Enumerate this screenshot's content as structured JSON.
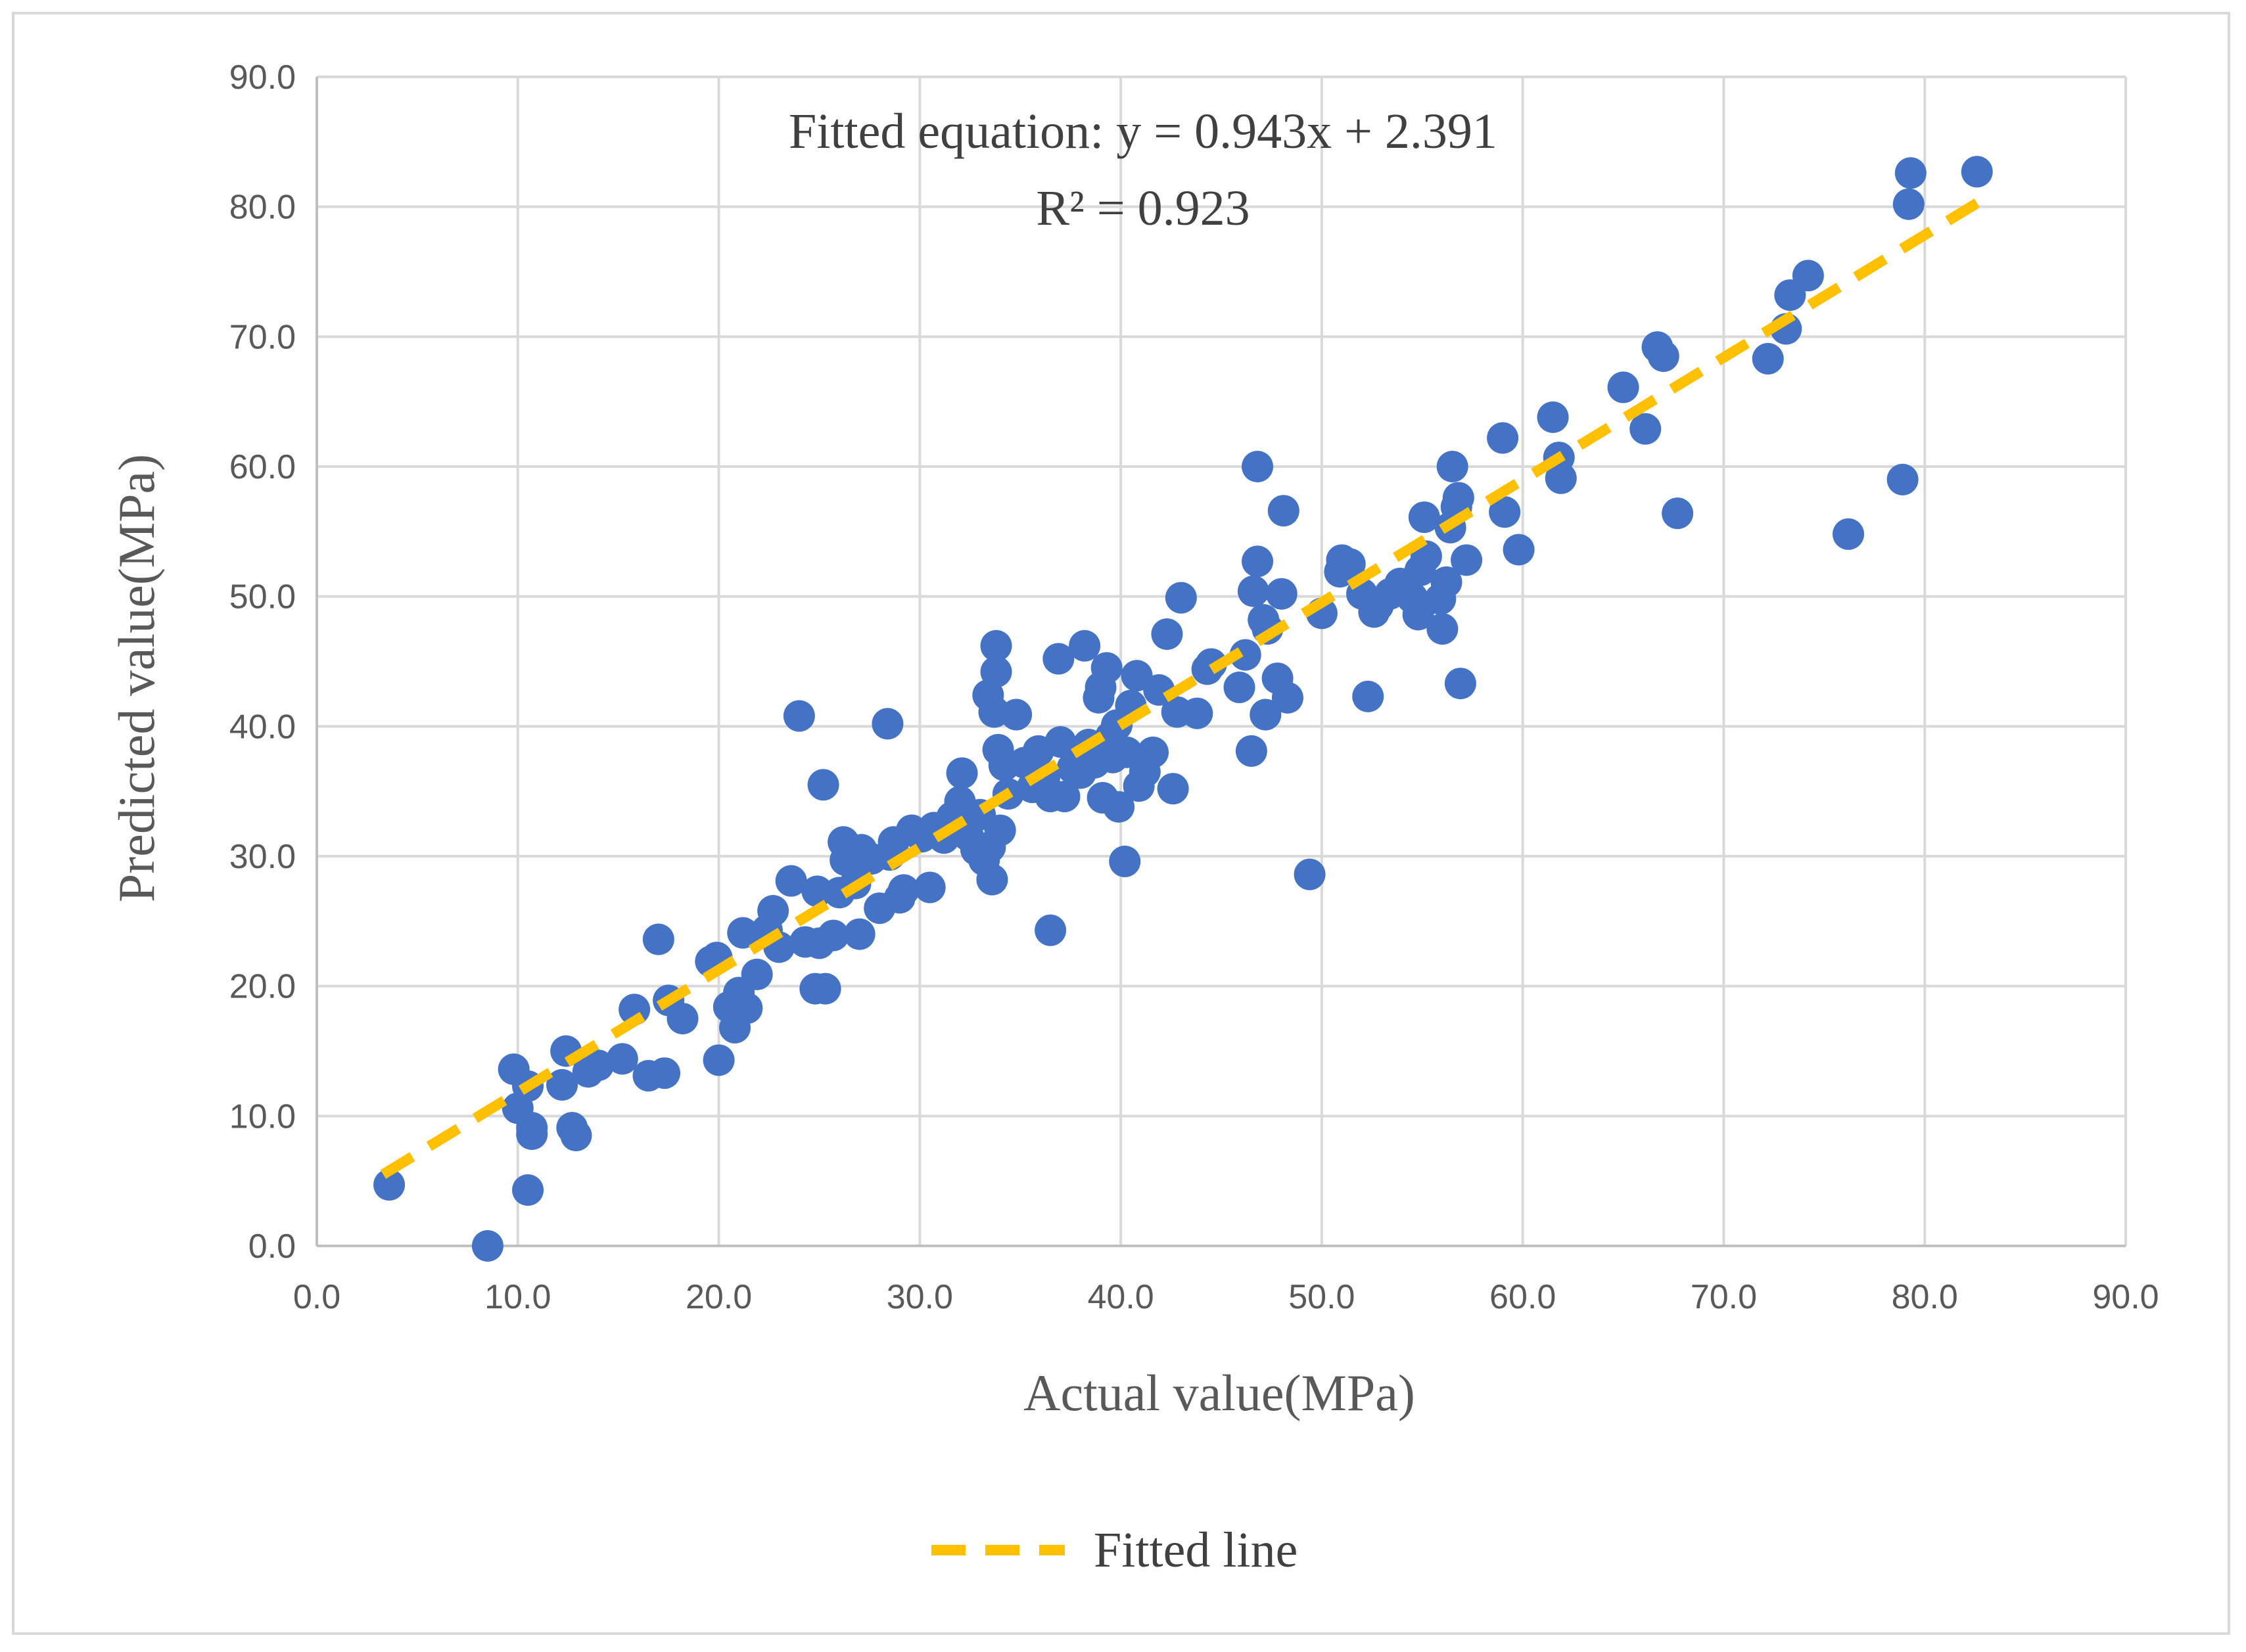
{
  "chart_data": {
    "type": "scatter",
    "title": "",
    "xlabel": "Actual value(MPa)",
    "ylabel": "Predicted value(MPa)",
    "xlim": [
      0,
      90
    ],
    "ylim": [
      0,
      90
    ],
    "x_ticks": [
      "0.0",
      "10.0",
      "20.0",
      "30.0",
      "40.0",
      "50.0",
      "60.0",
      "70.0",
      "80.0",
      "90.0"
    ],
    "y_ticks": [
      "0.0",
      "10.0",
      "20.0",
      "30.0",
      "40.0",
      "50.0",
      "60.0",
      "70.0",
      "80.0",
      "90.0"
    ],
    "grid": true,
    "legend_position": "bottom",
    "colors": {
      "points": "#4472c4",
      "fit_line": "#ffc000",
      "grid": "#d9d9d9",
      "axis": "#bfbfbf"
    },
    "annotation": {
      "equation": "Fitted equation: y = 0.943x + 2.391",
      "r2": "R² = 0.923"
    },
    "fit_line": {
      "name": "Fitted line",
      "slope": 0.943,
      "intercept": 2.391,
      "x_range": [
        3.3,
        83
      ]
    },
    "points": [
      [
        3.6,
        4.7
      ],
      [
        8.5,
        0.0
      ],
      [
        9.8,
        13.6
      ],
      [
        10.0,
        10.6
      ],
      [
        10.5,
        12.3
      ],
      [
        10.5,
        4.3
      ],
      [
        10.7,
        9.1
      ],
      [
        10.7,
        8.6
      ],
      [
        12.2,
        12.4
      ],
      [
        12.4,
        15.0
      ],
      [
        12.7,
        9.1
      ],
      [
        12.9,
        8.5
      ],
      [
        13.5,
        13.4
      ],
      [
        14.0,
        13.9
      ],
      [
        15.2,
        14.4
      ],
      [
        15.8,
        18.2
      ],
      [
        16.5,
        13.1
      ],
      [
        17.0,
        23.6
      ],
      [
        17.3,
        13.3
      ],
      [
        17.5,
        18.9
      ],
      [
        18.2,
        17.5
      ],
      [
        19.6,
        21.9
      ],
      [
        19.9,
        22.2
      ],
      [
        20.0,
        14.3
      ],
      [
        20.5,
        18.4
      ],
      [
        20.8,
        16.8
      ],
      [
        21.0,
        19.5
      ],
      [
        21.2,
        24.1
      ],
      [
        21.4,
        18.3
      ],
      [
        21.9,
        20.9
      ],
      [
        22.4,
        24.3
      ],
      [
        22.7,
        25.8
      ],
      [
        23.0,
        23.0
      ],
      [
        23.6,
        28.1
      ],
      [
        24.0,
        40.8
      ],
      [
        24.3,
        23.4
      ],
      [
        24.8,
        19.8
      ],
      [
        24.9,
        27.3
      ],
      [
        25.0,
        23.3
      ],
      [
        25.2,
        35.5
      ],
      [
        25.3,
        19.8
      ],
      [
        25.7,
        23.9
      ],
      [
        26.0,
        27.2
      ],
      [
        26.2,
        31.1
      ],
      [
        26.3,
        29.7
      ],
      [
        26.8,
        27.9
      ],
      [
        27.0,
        24.0
      ],
      [
        27.1,
        30.5
      ],
      [
        27.6,
        29.8
      ],
      [
        28.0,
        26.0
      ],
      [
        28.4,
        40.2
      ],
      [
        28.5,
        30.1
      ],
      [
        28.7,
        31.1
      ],
      [
        29.0,
        26.8
      ],
      [
        29.2,
        27.4
      ],
      [
        29.6,
        32.0
      ],
      [
        30.1,
        31.5
      ],
      [
        30.5,
        27.6
      ],
      [
        30.7,
        32.2
      ],
      [
        31.2,
        31.4
      ],
      [
        31.6,
        33.0
      ],
      [
        32.0,
        34.2
      ],
      [
        32.1,
        36.4
      ],
      [
        32.4,
        31.6
      ],
      [
        32.8,
        30.5
      ],
      [
        33.0,
        33.2
      ],
      [
        33.2,
        29.7
      ],
      [
        33.4,
        42.4
      ],
      [
        33.5,
        30.7
      ],
      [
        33.6,
        28.2
      ],
      [
        33.7,
        41.1
      ],
      [
        33.8,
        44.2
      ],
      [
        33.8,
        46.2
      ],
      [
        33.9,
        38.2
      ],
      [
        34.0,
        32.0
      ],
      [
        34.2,
        37.0
      ],
      [
        34.4,
        34.8
      ],
      [
        34.8,
        40.9
      ],
      [
        35.2,
        37.2
      ],
      [
        35.6,
        35.3
      ],
      [
        35.9,
        38.1
      ],
      [
        36.2,
        36.0
      ],
      [
        36.5,
        34.6
      ],
      [
        36.5,
        24.3
      ],
      [
        36.9,
        45.2
      ],
      [
        37.0,
        38.8
      ],
      [
        37.2,
        34.6
      ],
      [
        37.6,
        36.8
      ],
      [
        38.0,
        36.4
      ],
      [
        38.2,
        46.2
      ],
      [
        38.4,
        38.6
      ],
      [
        38.7,
        37.2
      ],
      [
        38.9,
        42.2
      ],
      [
        39.0,
        43.0
      ],
      [
        39.1,
        34.5
      ],
      [
        39.3,
        44.5
      ],
      [
        39.5,
        39.2
      ],
      [
        39.6,
        37.6
      ],
      [
        39.8,
        40.1
      ],
      [
        39.9,
        33.8
      ],
      [
        40.2,
        29.6
      ],
      [
        40.3,
        38.0
      ],
      [
        40.5,
        41.6
      ],
      [
        40.8,
        43.9
      ],
      [
        40.9,
        35.4
      ],
      [
        41.2,
        36.5
      ],
      [
        41.6,
        38.0
      ],
      [
        41.9,
        42.8
      ],
      [
        42.3,
        47.1
      ],
      [
        42.6,
        35.2
      ],
      [
        42.8,
        41.1
      ],
      [
        43.0,
        49.9
      ],
      [
        43.8,
        41.0
      ],
      [
        44.3,
        44.4
      ],
      [
        44.5,
        44.8
      ],
      [
        45.9,
        43.0
      ],
      [
        46.2,
        45.5
      ],
      [
        46.5,
        38.1
      ],
      [
        46.6,
        50.4
      ],
      [
        46.8,
        52.7
      ],
      [
        46.8,
        60.0
      ],
      [
        47.1,
        48.2
      ],
      [
        47.2,
        40.9
      ],
      [
        47.3,
        47.5
      ],
      [
        47.8,
        43.7
      ],
      [
        48.0,
        50.2
      ],
      [
        48.1,
        56.6
      ],
      [
        48.3,
        42.2
      ],
      [
        49.4,
        28.6
      ],
      [
        50.0,
        48.7
      ],
      [
        50.9,
        51.9
      ],
      [
        51.0,
        52.8
      ],
      [
        51.4,
        52.5
      ],
      [
        52.0,
        50.2
      ],
      [
        52.3,
        42.3
      ],
      [
        52.6,
        48.8
      ],
      [
        52.8,
        49.3
      ],
      [
        53.4,
        50.2
      ],
      [
        53.9,
        51.0
      ],
      [
        54.5,
        49.9
      ],
      [
        54.8,
        48.6
      ],
      [
        54.9,
        52.0
      ],
      [
        55.1,
        56.1
      ],
      [
        55.2,
        53.1
      ],
      [
        55.9,
        49.8
      ],
      [
        56.0,
        47.5
      ],
      [
        56.2,
        51.1
      ],
      [
        56.4,
        55.3
      ],
      [
        56.5,
        60.0
      ],
      [
        56.7,
        56.9
      ],
      [
        56.8,
        57.6
      ],
      [
        56.9,
        43.3
      ],
      [
        57.2,
        52.8
      ],
      [
        59.0,
        62.2
      ],
      [
        59.1,
        56.5
      ],
      [
        59.8,
        53.6
      ],
      [
        61.5,
        63.8
      ],
      [
        61.8,
        60.7
      ],
      [
        61.9,
        59.1
      ],
      [
        65.0,
        66.1
      ],
      [
        66.1,
        62.9
      ],
      [
        66.7,
        69.2
      ],
      [
        67.0,
        68.5
      ],
      [
        67.7,
        56.4
      ],
      [
        72.2,
        68.3
      ],
      [
        73.1,
        70.6
      ],
      [
        73.3,
        73.2
      ],
      [
        74.2,
        74.7
      ],
      [
        76.2,
        54.8
      ],
      [
        78.9,
        59.0
      ],
      [
        79.2,
        80.2
      ],
      [
        79.3,
        82.6
      ],
      [
        82.6,
        82.7
      ]
    ]
  }
}
